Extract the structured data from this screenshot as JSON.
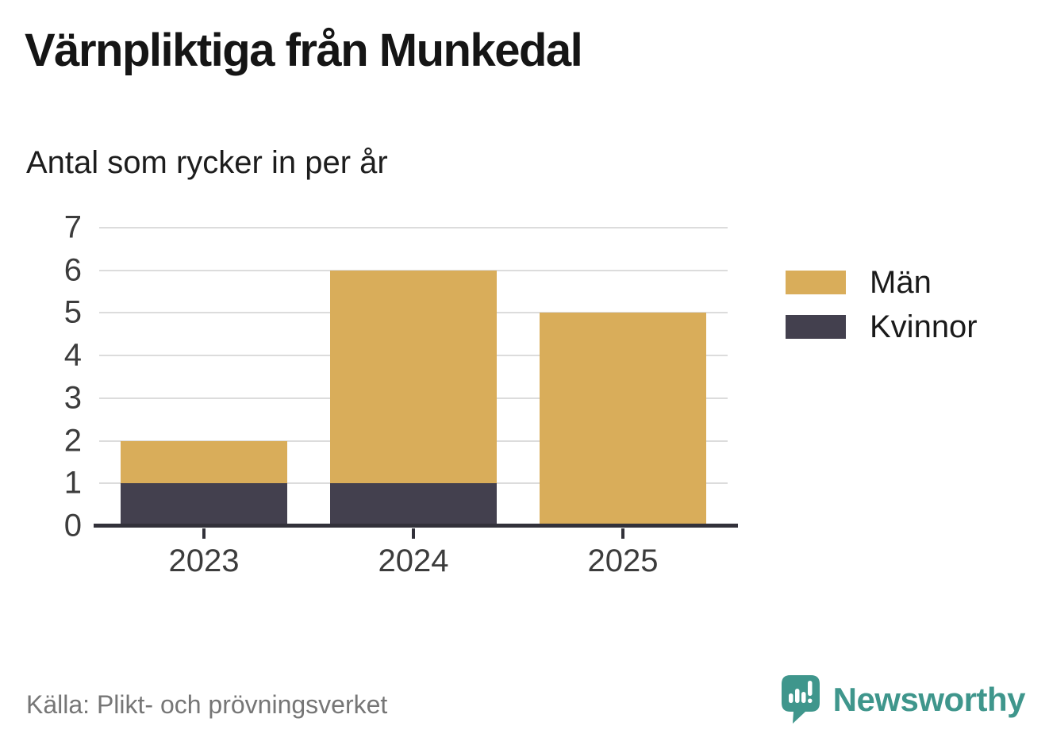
{
  "header": {
    "title": "Värnpliktiga från Munkedal",
    "subtitle": "Antal som rycker in per år"
  },
  "chart_data": {
    "type": "bar",
    "stacked": true,
    "title": "Värnpliktiga från Munkedal",
    "subtitle": "Antal som rycker in per år",
    "categories": [
      "2023",
      "2024",
      "2025"
    ],
    "series": [
      {
        "name": "Män",
        "color": "#d9ad5a",
        "values": [
          1,
          5,
          5
        ]
      },
      {
        "name": "Kvinnor",
        "color": "#43404e",
        "values": [
          1,
          1,
          0
        ]
      }
    ],
    "stack_totals": [
      2,
      6,
      5
    ],
    "xlabel": "",
    "ylabel": "",
    "ylim": [
      0,
      7
    ],
    "yticks": [
      0,
      1,
      2,
      3,
      4,
      5,
      6,
      7
    ],
    "grid": true,
    "gridline_color": "#dcdcdc",
    "axis_color": "#32313a",
    "tick_label_color": "#3c3c3c",
    "legend_position": "right",
    "bar_width_frac": 0.266
  },
  "legend": {
    "items": [
      {
        "label": "Män",
        "color": "#d9ad5a"
      },
      {
        "label": "Kvinnor",
        "color": "#43404e"
      }
    ]
  },
  "footer": {
    "source": "Källa: Plikt- och prövningsverket",
    "brand": "Newsworthy",
    "brand_color": "#3f968c",
    "logo_icon": "bar-chart-speech-bubble-icon"
  }
}
